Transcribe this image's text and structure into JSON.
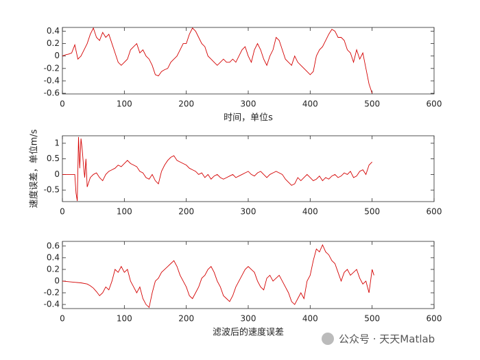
{
  "chart_data": [
    {
      "type": "line",
      "xlabel": "时间，单位s",
      "color": "#d40000",
      "xlim": [
        0,
        600
      ],
      "xticks": [
        0,
        100,
        200,
        300,
        400,
        500,
        600
      ],
      "ylim": [
        -0.61,
        0.46
      ],
      "yticks": [
        -0.6,
        -0.4,
        -0.2,
        0,
        0.2,
        0.4
      ],
      "x": [
        0,
        5,
        10,
        15,
        20,
        25,
        30,
        35,
        40,
        45,
        50,
        55,
        60,
        65,
        70,
        75,
        80,
        85,
        90,
        95,
        100,
        105,
        110,
        115,
        120,
        125,
        130,
        135,
        140,
        145,
        150,
        155,
        160,
        165,
        170,
        175,
        180,
        185,
        190,
        195,
        200,
        205,
        210,
        215,
        220,
        225,
        230,
        235,
        240,
        245,
        250,
        255,
        260,
        265,
        270,
        275,
        280,
        285,
        290,
        295,
        300,
        305,
        310,
        315,
        320,
        325,
        330,
        335,
        340,
        345,
        350,
        355,
        360,
        365,
        370,
        375,
        380,
        385,
        390,
        395,
        400,
        405,
        410,
        415,
        420,
        425,
        430,
        435,
        440,
        445,
        450,
        455,
        460,
        465,
        470,
        475,
        480,
        485,
        490,
        495,
        500
      ],
      "values": [
        0,
        0.02,
        0.03,
        0.05,
        0.18,
        -0.05,
        0.0,
        0.1,
        0.2,
        0.35,
        0.45,
        0.3,
        0.25,
        0.38,
        0.3,
        0.35,
        0.2,
        0.05,
        -0.1,
        -0.15,
        -0.1,
        -0.05,
        0.1,
        0.15,
        0.2,
        0.05,
        0.1,
        0.0,
        -0.05,
        -0.15,
        -0.3,
        -0.32,
        -0.25,
        -0.22,
        -0.2,
        -0.1,
        -0.05,
        0.0,
        0.1,
        0.2,
        0.2,
        0.35,
        0.45,
        0.4,
        0.3,
        0.2,
        0.15,
        0.0,
        -0.05,
        -0.1,
        -0.15,
        -0.1,
        -0.05,
        -0.1,
        -0.1,
        -0.05,
        -0.1,
        0.0,
        0.1,
        0.15,
        0.0,
        -0.1,
        0.1,
        0.2,
        0.1,
        -0.05,
        -0.15,
        0.0,
        0.1,
        0.3,
        0.25,
        0.1,
        -0.05,
        -0.1,
        -0.15,
        0.0,
        -0.1,
        -0.15,
        -0.2,
        -0.25,
        -0.3,
        -0.25,
        0.0,
        0.1,
        0.15,
        0.25,
        0.35,
        0.43,
        0.4,
        0.3,
        0.3,
        0.25,
        0.1,
        0.05,
        -0.1,
        0.1,
        -0.05,
        0.05,
        -0.2,
        -0.45,
        -0.6
      ]
    },
    {
      "type": "line",
      "ylabel": "速度误差，单位m/s",
      "color": "#d40000",
      "xlim": [
        0,
        600
      ],
      "xticks": [
        0,
        100,
        200,
        300,
        400,
        500,
        600
      ],
      "ylim": [
        -0.87,
        1.24
      ],
      "yticks": [
        -0.5,
        0,
        0.5,
        1
      ],
      "x": [
        0,
        10,
        18,
        20,
        22,
        24,
        26,
        28,
        30,
        32,
        34,
        36,
        38,
        40,
        45,
        50,
        55,
        60,
        65,
        70,
        75,
        80,
        85,
        90,
        95,
        100,
        105,
        110,
        115,
        120,
        125,
        130,
        135,
        140,
        145,
        150,
        155,
        160,
        165,
        170,
        175,
        180,
        185,
        190,
        195,
        200,
        205,
        210,
        215,
        220,
        225,
        230,
        235,
        240,
        245,
        250,
        255,
        260,
        265,
        270,
        275,
        280,
        285,
        290,
        295,
        300,
        305,
        310,
        315,
        320,
        325,
        330,
        335,
        340,
        345,
        350,
        355,
        360,
        365,
        370,
        375,
        380,
        385,
        390,
        395,
        400,
        405,
        410,
        415,
        420,
        425,
        430,
        435,
        440,
        445,
        450,
        455,
        460,
        465,
        470,
        475,
        480,
        485,
        490,
        495,
        500
      ],
      "values": [
        0,
        0,
        0,
        0,
        -0.6,
        -0.85,
        1.2,
        0.2,
        1.15,
        0.8,
        0.3,
        -0.1,
        0.5,
        -0.4,
        -0.1,
        0.0,
        0.05,
        -0.1,
        -0.2,
        0.0,
        0.1,
        0.15,
        0.2,
        0.3,
        0.25,
        0.35,
        0.45,
        0.35,
        0.3,
        0.25,
        0.1,
        0.05,
        -0.1,
        -0.15,
        0.0,
        -0.2,
        -0.3,
        0.1,
        0.3,
        0.45,
        0.55,
        0.6,
        0.45,
        0.4,
        0.35,
        0.3,
        0.2,
        0.15,
        0.1,
        0.0,
        0.05,
        -0.1,
        0.0,
        -0.15,
        -0.05,
        0.0,
        -0.1,
        -0.15,
        -0.1,
        -0.05,
        0.0,
        -0.1,
        -0.05,
        0.0,
        0.05,
        0.1,
        0.0,
        -0.05,
        0.05,
        0.1,
        0.0,
        -0.1,
        0.0,
        0.05,
        0.1,
        0.05,
        0.0,
        -0.15,
        -0.25,
        -0.35,
        -0.3,
        -0.1,
        -0.2,
        -0.1,
        0.0,
        -0.1,
        -0.2,
        -0.15,
        -0.05,
        -0.2,
        -0.1,
        -0.15,
        -0.05,
        0.0,
        -0.1,
        -0.05,
        0.05,
        0.0,
        0.1,
        -0.1,
        -0.05,
        0.1,
        0.15,
        0.0,
        0.3,
        0.4
      ]
    },
    {
      "type": "line",
      "xlabel": "滤波后的速度误差",
      "color": "#d40000",
      "xlim": [
        0,
        600
      ],
      "xticks": [
        0,
        100,
        200,
        300,
        400,
        500,
        600
      ],
      "ylim": [
        -0.47,
        0.68
      ],
      "yticks": [
        -0.4,
        -0.2,
        0,
        0.2,
        0.4,
        0.6
      ],
      "x": [
        0,
        10,
        20,
        30,
        40,
        45,
        50,
        55,
        60,
        65,
        70,
        75,
        80,
        85,
        90,
        95,
        100,
        105,
        110,
        115,
        120,
        125,
        130,
        135,
        140,
        145,
        150,
        155,
        160,
        165,
        170,
        175,
        180,
        185,
        190,
        195,
        200,
        205,
        210,
        215,
        220,
        225,
        230,
        235,
        240,
        245,
        250,
        255,
        260,
        265,
        270,
        275,
        280,
        285,
        290,
        295,
        300,
        305,
        310,
        315,
        320,
        325,
        330,
        335,
        340,
        345,
        350,
        355,
        360,
        365,
        370,
        375,
        380,
        385,
        390,
        395,
        400,
        405,
        410,
        415,
        420,
        425,
        430,
        435,
        440,
        445,
        450,
        455,
        460,
        465,
        470,
        475,
        480,
        485,
        490,
        495,
        500,
        503
      ],
      "values": [
        0,
        -0.01,
        -0.02,
        -0.03,
        -0.05,
        -0.08,
        -0.12,
        -0.18,
        -0.25,
        -0.2,
        -0.1,
        -0.15,
        0.0,
        0.2,
        0.15,
        0.25,
        0.15,
        0.2,
        0.0,
        -0.1,
        -0.2,
        -0.1,
        -0.3,
        -0.4,
        -0.45,
        -0.2,
        0.0,
        0.05,
        0.15,
        0.2,
        0.25,
        0.3,
        0.35,
        0.25,
        0.1,
        0.0,
        -0.1,
        -0.25,
        -0.3,
        -0.2,
        -0.1,
        0.05,
        0.1,
        0.2,
        0.25,
        0.15,
        0.0,
        -0.1,
        -0.25,
        -0.3,
        -0.35,
        -0.25,
        -0.1,
        0.0,
        0.1,
        0.2,
        0.25,
        0.2,
        0.15,
        0.0,
        -0.1,
        -0.15,
        0.05,
        0.1,
        0.0,
        0.05,
        0.1,
        0.0,
        -0.1,
        -0.2,
        -0.35,
        -0.4,
        -0.3,
        -0.2,
        -0.3,
        0.0,
        0.1,
        0.35,
        0.55,
        0.5,
        0.62,
        0.5,
        0.45,
        0.35,
        0.3,
        0.15,
        0.0,
        0.15,
        0.2,
        0.1,
        0.15,
        0.2,
        0.05,
        -0.05,
        0.0,
        -0.2,
        0.2,
        0.1
      ]
    }
  ],
  "watermark": "公众号 · 天天Matlab"
}
